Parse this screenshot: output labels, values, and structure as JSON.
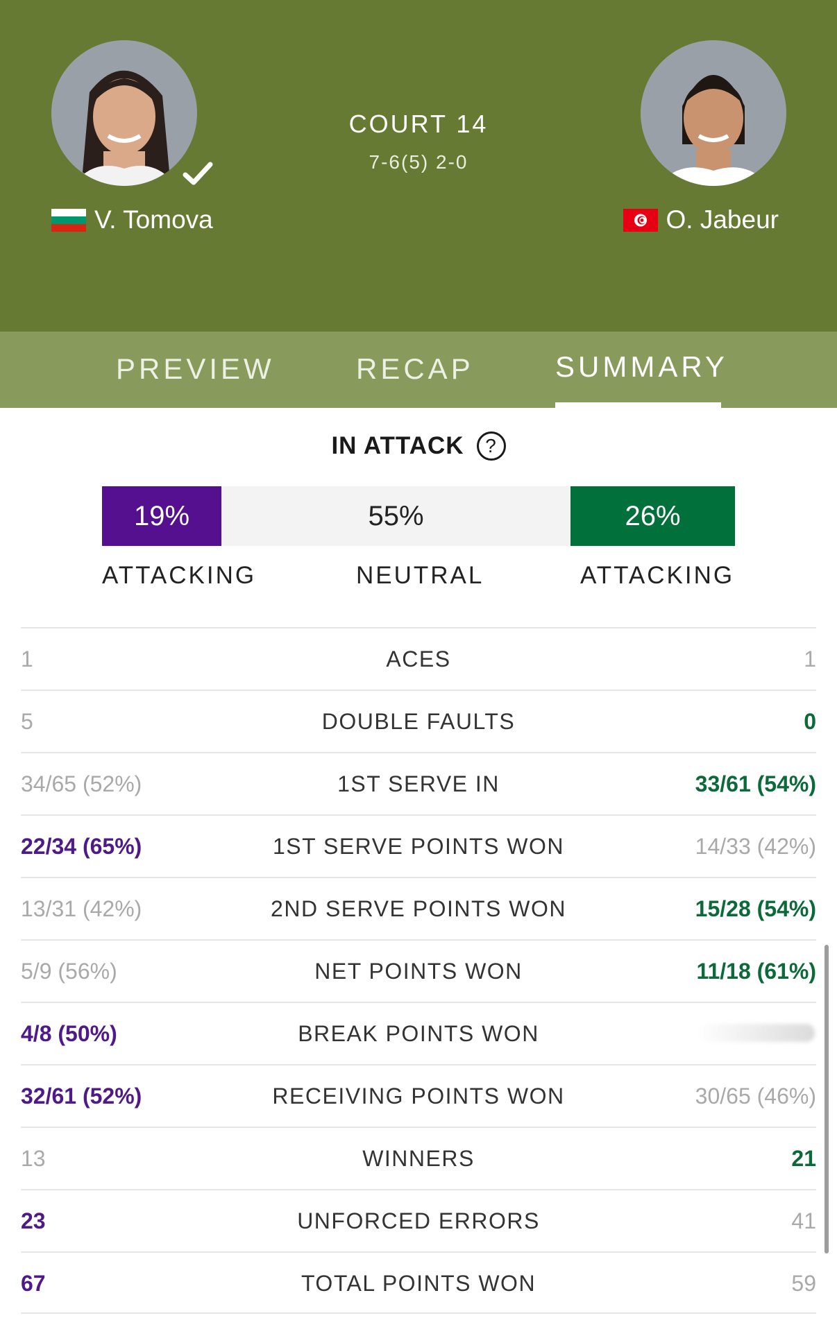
{
  "match": {
    "court": "COURT 14",
    "score": "7-6(5) 2-0",
    "player_left": {
      "name": "V. Tomova",
      "flag": "bulgaria-flag",
      "winner": true
    },
    "player_right": {
      "name": "O. Jabeur",
      "flag": "tunisia-flag"
    }
  },
  "tabs": [
    {
      "label": "PREVIEW"
    },
    {
      "label": "RECAP"
    },
    {
      "label": "SUMMARY",
      "active": true
    }
  ],
  "attack": {
    "title": "IN ATTACK",
    "help_icon": "question-circle-icon",
    "left": {
      "value": "19%",
      "label": "ATTACKING",
      "color": "#54108e"
    },
    "neutral": {
      "value": "55%",
      "label": "NEUTRAL",
      "color": "#f3f3f3"
    },
    "right": {
      "value": "26%",
      "label": "ATTACKING",
      "color": "#02703b"
    }
  },
  "stats": [
    {
      "label": "ACES",
      "left": "1",
      "right": "1",
      "leader": "none"
    },
    {
      "label": "DOUBLE FAULTS",
      "left": "5",
      "right": "0",
      "leader": "right"
    },
    {
      "label": "1ST SERVE IN",
      "left": "34/65 (52%)",
      "right": "33/61 (54%)",
      "leader": "right"
    },
    {
      "label": "1ST SERVE POINTS WON",
      "left": "22/34 (65%)",
      "right": "14/33 (42%)",
      "leader": "left"
    },
    {
      "label": "2ND SERVE POINTS WON",
      "left": "13/31 (42%)",
      "right": "15/28 (54%)",
      "leader": "right"
    },
    {
      "label": "NET POINTS WON",
      "left": "5/9 (56%)",
      "right": "11/18 (61%)",
      "leader": "right"
    },
    {
      "label": "BREAK POINTS WON",
      "left": "4/8 (50%)",
      "right": "",
      "leader": "left"
    },
    {
      "label": "RECEIVING POINTS WON",
      "left": "32/61 (52%)",
      "right": "30/65 (46%)",
      "leader": "left"
    },
    {
      "label": "WINNERS",
      "left": "13",
      "right": "21",
      "leader": "right"
    },
    {
      "label": "UNFORCED ERRORS",
      "left": "23",
      "right": "41",
      "leader": "left"
    },
    {
      "label": "TOTAL POINTS WON",
      "left": "67",
      "right": "59",
      "leader": "left"
    }
  ],
  "colors": {
    "header_bg": "#667a34",
    "tabs_bg": "#889a5c",
    "left_player": "#4e1a8a",
    "right_player": "#0c6a3a",
    "muted": "#a9a9a9"
  }
}
